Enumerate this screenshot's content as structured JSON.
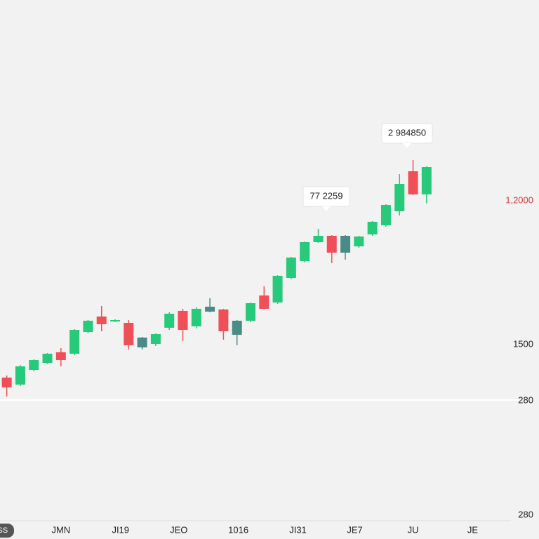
{
  "chart_data": {
    "type": "candlestick",
    "open": [
      230,
      220,
      241,
      251,
      266,
      264,
      295,
      317,
      310,
      308,
      287,
      278,
      301,
      325,
      303,
      331,
      327,
      311,
      311,
      347,
      337,
      372,
      396,
      423,
      432,
      432,
      417,
      434,
      447,
      467,
      524,
      491
    ],
    "high": [
      233,
      248,
      256,
      265,
      272,
      299,
      312,
      332,
      313,
      312,
      288,
      293,
      323,
      328,
      330,
      343,
      328,
      312,
      337,
      360,
      376,
      402,
      424,
      442,
      433,
      433,
      432,
      453,
      477,
      520,
      540,
      531
    ],
    "low": [
      203,
      218,
      239,
      249,
      246,
      262,
      293,
      296,
      309,
      270,
      270,
      275,
      298,
      282,
      300,
      323,
      284,
      276,
      309,
      327,
      335,
      370,
      394,
      422,
      393,
      398,
      415,
      432,
      445,
      461,
      490,
      478
    ],
    "close": [
      216,
      246,
      255,
      264,
      255,
      298,
      311,
      306,
      312,
      276,
      273,
      292,
      321,
      298,
      328,
      324,
      296,
      291,
      336,
      328,
      375,
      401,
      423,
      432,
      408,
      408,
      431,
      452,
      476,
      506,
      491,
      530
    ],
    "colors": [
      "#ef4f57",
      "#27c97a",
      "#27c97a",
      "#27c97a",
      "#ef4f57",
      "#27c97a",
      "#27c97a",
      "#ef4f57",
      "#27c97a",
      "#ef4f57",
      "#4a8a87",
      "#27c97a",
      "#27c97a",
      "#ef4f57",
      "#27c97a",
      "#4a8a87",
      "#ef4f57",
      "#4a8a87",
      "#27c97a",
      "#ef4f57",
      "#27c97a",
      "#27c97a",
      "#27c97a",
      "#27c97a",
      "#ef4f57",
      "#4a8a87",
      "#27c97a",
      "#27c97a",
      "#27c97a",
      "#27c97a",
      "#ef4f57",
      "#27c97a"
    ],
    "xlim": [
      -0.5,
      39.3
    ],
    "ylim": [
      0,
      768
    ],
    "xticks": [
      {
        "value": -0.3,
        "label": "SS"
      },
      {
        "value": 4,
        "label": "JMN"
      },
      {
        "value": 8.4,
        "label": "JI19"
      },
      {
        "value": 12.7,
        "label": "JEO"
      },
      {
        "value": 17.1,
        "label": "1016"
      },
      {
        "value": 21.5,
        "label": "JI31"
      },
      {
        "value": 25.7,
        "label": "JE7"
      },
      {
        "value": 30,
        "label": "JU"
      },
      {
        "value": 34.4,
        "label": "JE"
      }
    ],
    "right_labels": [
      "1,2000",
      "1500",
      "280",
      "280"
    ],
    "annotations": [
      "2 984850",
      "77 2259"
    ]
  }
}
